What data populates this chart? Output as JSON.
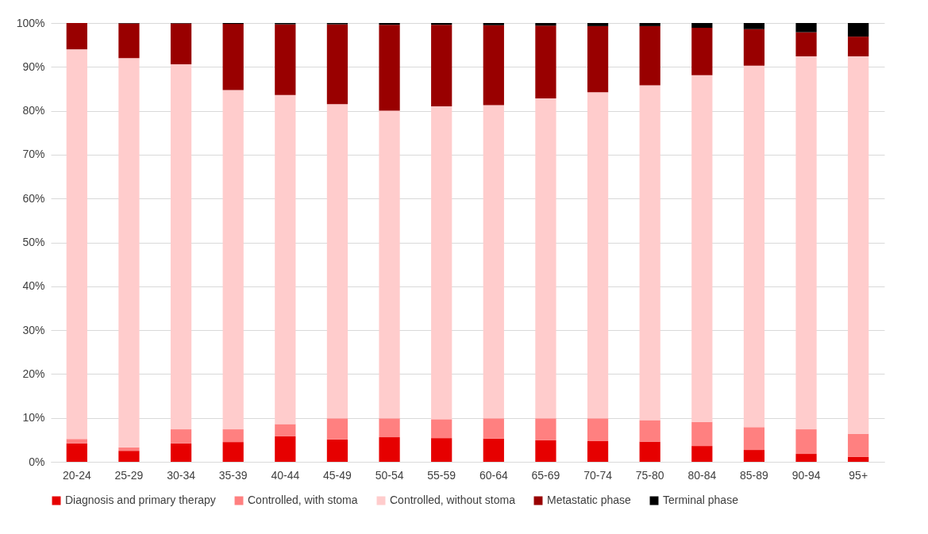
{
  "chart_data": {
    "type": "bar",
    "stacked": true,
    "categories": [
      "20-24",
      "25-29",
      "30-34",
      "35-39",
      "40-44",
      "45-49",
      "50-54",
      "55-59",
      "60-64",
      "65-69",
      "70-74",
      "75-80",
      "80-84",
      "85-89",
      "90-94",
      "95+"
    ],
    "series": [
      {
        "name": "Diagnosis and primary therapy",
        "color": "#e60000",
        "values": [
          4.2,
          2.5,
          4.2,
          4.5,
          5.8,
          5.1,
          5.6,
          5.4,
          5.3,
          4.9,
          4.7,
          4.6,
          3.6,
          2.7,
          1.8,
          1.1
        ]
      },
      {
        "name": "Controlled, with stoma",
        "color": "#ff8080",
        "values": [
          1.0,
          0.8,
          3.2,
          2.9,
          2.8,
          4.8,
          4.3,
          4.3,
          4.6,
          5.0,
          5.2,
          4.9,
          5.5,
          5.2,
          5.6,
          5.3
        ]
      },
      {
        "name": "Controlled, without stoma",
        "color": "#ffcccc",
        "values": [
          88.8,
          88.7,
          83.2,
          77.3,
          75.0,
          71.6,
          70.1,
          71.3,
          71.4,
          72.9,
          74.3,
          76.3,
          79.0,
          82.4,
          85.0,
          86.0
        ]
      },
      {
        "name": "Metastatic phase",
        "color": "#990000",
        "values": [
          6.0,
          7.9,
          9.3,
          15.1,
          16.1,
          18.2,
          19.6,
          18.6,
          18.2,
          16.6,
          15.1,
          13.5,
          10.8,
          8.3,
          5.5,
          4.5
        ]
      },
      {
        "name": "Terminal phase",
        "color": "#000000",
        "values": [
          0,
          0.1,
          0.1,
          0.2,
          0.3,
          0.3,
          0.4,
          0.4,
          0.5,
          0.6,
          0.7,
          0.7,
          1.1,
          1.4,
          2.1,
          3.1
        ]
      }
    ],
    "ylim": [
      0,
      100
    ],
    "yticks": [
      {
        "value": 0,
        "label": "0%"
      },
      {
        "value": 10,
        "label": "10%"
      },
      {
        "value": 20,
        "label": "20%"
      },
      {
        "value": 30,
        "label": "30%"
      },
      {
        "value": 40,
        "label": "40%"
      },
      {
        "value": 50,
        "label": "50%"
      },
      {
        "value": 60,
        "label": "60%"
      },
      {
        "value": 70,
        "label": "70%"
      },
      {
        "value": 80,
        "label": "80%"
      },
      {
        "value": 90,
        "label": "90%"
      },
      {
        "value": 100,
        "label": "100%"
      }
    ],
    "grid": "y",
    "legend": "bottom"
  }
}
